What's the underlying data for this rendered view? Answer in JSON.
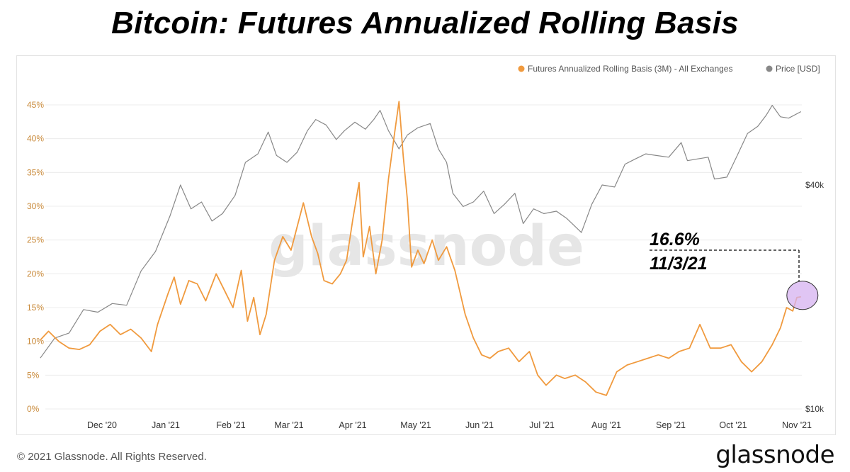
{
  "chart_data": {
    "type": "line",
    "title": "Bitcoin: Futures Annualized Rolling Basis",
    "watermark": "glassnode",
    "legend": {
      "placement": "top-right",
      "items": [
        {
          "label": "Futures Annualized Rolling Basis (3M) - All Exchanges",
          "color": "#f09a3e"
        },
        {
          "label": "Price [USD]",
          "color": "#888888"
        }
      ]
    },
    "x_ticks": [
      "Dec '20",
      "Jan '21",
      "Feb '21",
      "Mar '21",
      "Apr '21",
      "May '21",
      "Jun '21",
      "Jul '21",
      "Aug '21",
      "Sep '21",
      "Oct '21",
      "Nov '21"
    ],
    "y_left": {
      "ticks": [
        "0%",
        "5%",
        "10%",
        "15%",
        "20%",
        "25%",
        "30%",
        "35%",
        "40%",
        "45%"
      ],
      "range": [
        0,
        45
      ],
      "unit": "%"
    },
    "y_right": {
      "ticks": [
        "$10k",
        "$40k"
      ],
      "scale": "log"
    },
    "grid": true,
    "series": [
      {
        "name": "Futures Annualized Rolling Basis (3M) - All Exchanges",
        "color": "#f09a3e",
        "axis": "left",
        "points": [
          [
            "2020-11-01",
            10.2
          ],
          [
            "2020-11-05",
            11.5
          ],
          [
            "2020-11-10",
            10.0
          ],
          [
            "2020-11-15",
            9.0
          ],
          [
            "2020-11-20",
            8.8
          ],
          [
            "2020-11-25",
            9.5
          ],
          [
            "2020-11-30",
            11.5
          ],
          [
            "2020-12-05",
            12.5
          ],
          [
            "2020-12-10",
            11.0
          ],
          [
            "2020-12-15",
            11.8
          ],
          [
            "2020-12-20",
            10.5
          ],
          [
            "2020-12-25",
            8.5
          ],
          [
            "2020-12-28",
            12.5
          ],
          [
            "2021-01-02",
            17.0
          ],
          [
            "2021-01-05",
            19.5
          ],
          [
            "2021-01-08",
            15.5
          ],
          [
            "2021-01-12",
            19.0
          ],
          [
            "2021-01-16",
            18.5
          ],
          [
            "2021-01-20",
            16.0
          ],
          [
            "2021-01-25",
            20.0
          ],
          [
            "2021-01-29",
            17.5
          ],
          [
            "2021-02-02",
            15.0
          ],
          [
            "2021-02-06",
            20.5
          ],
          [
            "2021-02-09",
            13.0
          ],
          [
            "2021-02-12",
            16.5
          ],
          [
            "2021-02-15",
            11.0
          ],
          [
            "2021-02-18",
            14.0
          ],
          [
            "2021-02-22",
            22.0
          ],
          [
            "2021-02-26",
            25.5
          ],
          [
            "2021-03-02",
            23.5
          ],
          [
            "2021-03-05",
            27.0
          ],
          [
            "2021-03-08",
            30.5
          ],
          [
            "2021-03-12",
            25.5
          ],
          [
            "2021-03-15",
            23.0
          ],
          [
            "2021-03-18",
            19.0
          ],
          [
            "2021-03-22",
            18.5
          ],
          [
            "2021-03-26",
            20.0
          ],
          [
            "2021-03-29",
            22.0
          ],
          [
            "2021-04-01",
            28.0
          ],
          [
            "2021-04-04",
            33.5
          ],
          [
            "2021-04-06",
            22.5
          ],
          [
            "2021-04-09",
            27.0
          ],
          [
            "2021-04-12",
            20.0
          ],
          [
            "2021-04-15",
            25.0
          ],
          [
            "2021-04-18",
            34.0
          ],
          [
            "2021-04-21",
            41.0
          ],
          [
            "2021-04-23",
            45.5
          ],
          [
            "2021-04-25",
            37.5
          ],
          [
            "2021-04-27",
            31.0
          ],
          [
            "2021-04-29",
            21.0
          ],
          [
            "2021-05-02",
            23.5
          ],
          [
            "2021-05-05",
            21.5
          ],
          [
            "2021-05-09",
            25.0
          ],
          [
            "2021-05-12",
            22.0
          ],
          [
            "2021-05-16",
            24.0
          ],
          [
            "2021-05-20",
            20.5
          ],
          [
            "2021-05-25",
            14.0
          ],
          [
            "2021-05-29",
            10.5
          ],
          [
            "2021-06-02",
            8.0
          ],
          [
            "2021-06-06",
            7.5
          ],
          [
            "2021-06-10",
            8.5
          ],
          [
            "2021-06-15",
            9.0
          ],
          [
            "2021-06-20",
            7.0
          ],
          [
            "2021-06-25",
            8.5
          ],
          [
            "2021-06-29",
            5.0
          ],
          [
            "2021-07-03",
            3.5
          ],
          [
            "2021-07-08",
            5.0
          ],
          [
            "2021-07-12",
            4.5
          ],
          [
            "2021-07-17",
            5.0
          ],
          [
            "2021-07-22",
            4.0
          ],
          [
            "2021-07-27",
            2.5
          ],
          [
            "2021-08-01",
            2.0
          ],
          [
            "2021-08-06",
            5.5
          ],
          [
            "2021-08-11",
            6.5
          ],
          [
            "2021-08-16",
            7.0
          ],
          [
            "2021-08-21",
            7.5
          ],
          [
            "2021-08-26",
            8.0
          ],
          [
            "2021-08-31",
            7.5
          ],
          [
            "2021-09-05",
            8.5
          ],
          [
            "2021-09-10",
            9.0
          ],
          [
            "2021-09-15",
            12.5
          ],
          [
            "2021-09-20",
            9.0
          ],
          [
            "2021-09-25",
            9.0
          ],
          [
            "2021-09-30",
            9.5
          ],
          [
            "2021-10-05",
            7.0
          ],
          [
            "2021-10-10",
            5.5
          ],
          [
            "2021-10-15",
            7.0
          ],
          [
            "2021-10-20",
            9.5
          ],
          [
            "2021-10-24",
            12.0
          ],
          [
            "2021-10-27",
            15.0
          ],
          [
            "2021-10-30",
            14.5
          ],
          [
            "2021-11-01",
            16.5
          ],
          [
            "2021-11-03",
            16.6
          ]
        ]
      },
      {
        "name": "Price [USD]",
        "color": "#888888",
        "axis": "right",
        "points": [
          [
            "2020-11-01",
            13700
          ],
          [
            "2020-11-08",
            15500
          ],
          [
            "2020-11-15",
            16000
          ],
          [
            "2020-11-22",
            18500
          ],
          [
            "2020-11-29",
            18200
          ],
          [
            "2020-12-06",
            19200
          ],
          [
            "2020-12-13",
            19000
          ],
          [
            "2020-12-20",
            23500
          ],
          [
            "2020-12-27",
            26500
          ],
          [
            "2021-01-03",
            33000
          ],
          [
            "2021-01-08",
            40000
          ],
          [
            "2021-01-13",
            34500
          ],
          [
            "2021-01-18",
            36000
          ],
          [
            "2021-01-23",
            32000
          ],
          [
            "2021-01-28",
            33500
          ],
          [
            "2021-02-03",
            37500
          ],
          [
            "2021-02-08",
            46000
          ],
          [
            "2021-02-14",
            48500
          ],
          [
            "2021-02-19",
            55500
          ],
          [
            "2021-02-23",
            48000
          ],
          [
            "2021-02-28",
            46000
          ],
          [
            "2021-03-05",
            49000
          ],
          [
            "2021-03-10",
            56000
          ],
          [
            "2021-03-14",
            60000
          ],
          [
            "2021-03-19",
            58000
          ],
          [
            "2021-03-24",
            53000
          ],
          [
            "2021-03-28",
            56000
          ],
          [
            "2021-04-02",
            59000
          ],
          [
            "2021-04-07",
            56500
          ],
          [
            "2021-04-11",
            60000
          ],
          [
            "2021-04-14",
            63500
          ],
          [
            "2021-04-18",
            56000
          ],
          [
            "2021-04-23",
            50000
          ],
          [
            "2021-04-27",
            54500
          ],
          [
            "2021-05-02",
            57000
          ],
          [
            "2021-05-08",
            58500
          ],
          [
            "2021-05-12",
            50000
          ],
          [
            "2021-05-16",
            46000
          ],
          [
            "2021-05-19",
            38000
          ],
          [
            "2021-05-24",
            35000
          ],
          [
            "2021-05-29",
            36000
          ],
          [
            "2021-06-03",
            38500
          ],
          [
            "2021-06-08",
            33500
          ],
          [
            "2021-06-13",
            35500
          ],
          [
            "2021-06-18",
            38000
          ],
          [
            "2021-06-22",
            31500
          ],
          [
            "2021-06-27",
            34500
          ],
          [
            "2021-07-02",
            33500
          ],
          [
            "2021-07-08",
            34000
          ],
          [
            "2021-07-13",
            32500
          ],
          [
            "2021-07-20",
            29800
          ],
          [
            "2021-07-25",
            35500
          ],
          [
            "2021-07-30",
            40000
          ],
          [
            "2021-08-05",
            39500
          ],
          [
            "2021-08-10",
            45500
          ],
          [
            "2021-08-15",
            47000
          ],
          [
            "2021-08-20",
            48500
          ],
          [
            "2021-08-25",
            48000
          ],
          [
            "2021-08-31",
            47500
          ],
          [
            "2021-09-06",
            52000
          ],
          [
            "2021-09-09",
            46500
          ],
          [
            "2021-09-14",
            47000
          ],
          [
            "2021-09-19",
            47500
          ],
          [
            "2021-09-22",
            41500
          ],
          [
            "2021-09-28",
            42000
          ],
          [
            "2021-10-03",
            48000
          ],
          [
            "2021-10-08",
            55000
          ],
          [
            "2021-10-13",
            57500
          ],
          [
            "2021-10-17",
            61500
          ],
          [
            "2021-10-20",
            65500
          ],
          [
            "2021-10-24",
            61000
          ],
          [
            "2021-10-28",
            60500
          ],
          [
            "2021-11-03",
            63000
          ]
        ]
      }
    ],
    "annotation": {
      "value": "16.6%",
      "date": "11/3/21"
    }
  },
  "footer": {
    "copyright": "© 2021 Glassnode. All Rights Reserved.",
    "logo": "glassnode"
  }
}
